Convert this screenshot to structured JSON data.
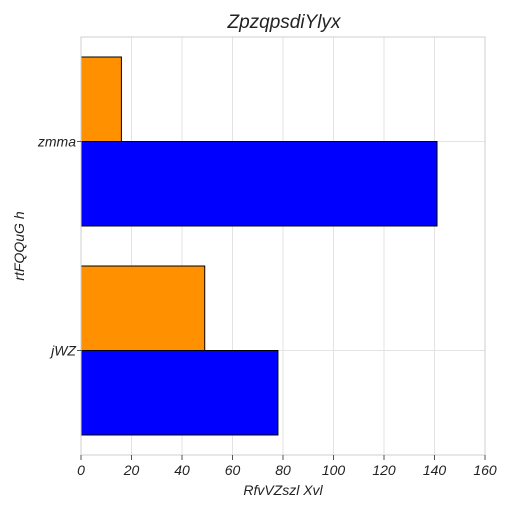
{
  "chart_data": {
    "type": "bar",
    "orientation": "horizontal",
    "title": "ZpzqpsdiYlyx",
    "xlabel": "RfvVZszl Xvl",
    "ylabel": "rtFQQuG h",
    "categories": [
      "jWZ",
      "zmma"
    ],
    "series": [
      {
        "values": [
          78,
          141
        ],
        "color": "#0000ff"
      },
      {
        "values": [
          49,
          16
        ],
        "color": "#ff9000"
      }
    ],
    "xlim": [
      0,
      160
    ],
    "xticks": [
      0,
      20,
      40,
      60,
      80,
      100,
      120,
      140,
      160
    ],
    "grid": true
  }
}
